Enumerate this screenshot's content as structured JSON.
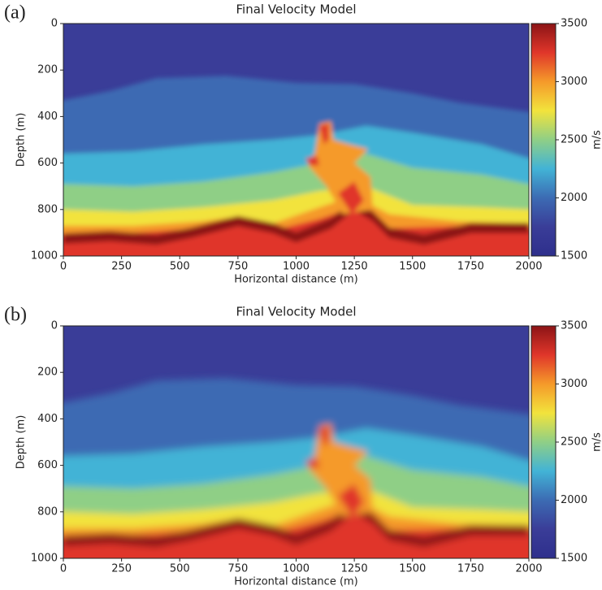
{
  "chart_data": [
    {
      "type": "heatmap",
      "panel_label": "(a)",
      "title": "Final Velocity Model",
      "xlabel": "Horizontal distance (m)",
      "ylabel": "Depth (m)",
      "xlim": [
        0,
        2000
      ],
      "xticks": [
        0,
        250,
        500,
        750,
        1000,
        1250,
        1500,
        1750,
        2000
      ],
      "ylim": [
        0,
        1000
      ],
      "yticks": [
        0,
        200,
        400,
        600,
        800,
        1000
      ],
      "y_inverted": true,
      "colormap": "jet",
      "clim": [
        1500,
        3500
      ],
      "cticks": [
        1500,
        2000,
        2500,
        3000,
        3500
      ],
      "colorbar_label": "m/s"
    },
    {
      "type": "heatmap",
      "panel_label": "(b)",
      "title": "Final Velocity Model",
      "xlabel": "Horizontal distance (m)",
      "ylabel": "Depth (m)",
      "xlim": [
        0,
        2000
      ],
      "xticks": [
        0,
        250,
        500,
        750,
        1000,
        1250,
        1500,
        1750,
        2000
      ],
      "ylim": [
        0,
        1000
      ],
      "yticks": [
        0,
        200,
        400,
        600,
        800,
        1000
      ],
      "y_inverted": true,
      "colormap": "jet",
      "clim": [
        1500,
        3500
      ],
      "cticks": [
        1500,
        2000,
        2500,
        3000,
        3500
      ],
      "colorbar_label": "m/s"
    }
  ]
}
